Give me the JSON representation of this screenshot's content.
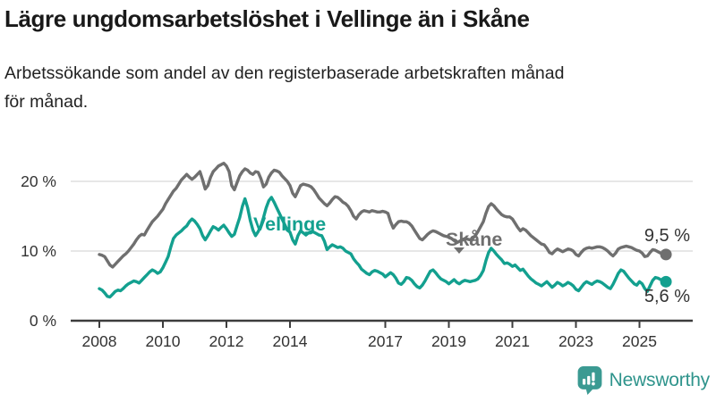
{
  "header": {
    "title": "Lägre ungdomsarbetslöshet i Vellinge än i Skåne",
    "subtitle": "Arbetssökande som andel av den registerbaserade arbetskraften månad\nför månad."
  },
  "chart_data": {
    "type": "line",
    "title": "Lägre ungdomsarbetslöshet i Vellinge än i Skåne",
    "frequency": "monthly",
    "x_start": "2008-01",
    "x_end": "2025-11",
    "ylim": [
      0,
      23.5
    ],
    "grid": "horizontal",
    "y_ticks": [
      {
        "label": "0 %",
        "value": 0
      },
      {
        "label": "10 %",
        "value": 10
      },
      {
        "label": "20 %",
        "value": 20
      }
    ],
    "x_ticks": [
      {
        "label": "2008",
        "year": 2008
      },
      {
        "label": "2010",
        "year": 2010
      },
      {
        "label": "2012",
        "year": 2012
      },
      {
        "label": "2014",
        "year": 2014
      },
      {
        "label": "2017",
        "year": 2017
      },
      {
        "label": "2019",
        "year": 2019
      },
      {
        "label": "2021",
        "year": 2021
      },
      {
        "label": "2023",
        "year": 2023
      },
      {
        "label": "2025",
        "year": 2025
      }
    ],
    "series": [
      {
        "name": "Skåne",
        "color": "#6F6F6F",
        "end_label": "9,5 %",
        "end_value": 9.5,
        "values": [
          9.5,
          9.4,
          9.2,
          8.6,
          8.0,
          7.7,
          8.1,
          8.5,
          8.9,
          9.3,
          9.6,
          10.0,
          10.5,
          11.0,
          11.6,
          12.1,
          12.4,
          12.3,
          13.0,
          13.6,
          14.2,
          14.6,
          15.0,
          15.5,
          16.0,
          16.8,
          17.4,
          18.0,
          18.6,
          19.0,
          19.6,
          20.2,
          20.6,
          21.0,
          20.6,
          20.3,
          20.6,
          21.0,
          21.4,
          20.2,
          18.9,
          19.4,
          20.6,
          21.4,
          21.8,
          22.2,
          22.4,
          22.6,
          22.2,
          21.4,
          19.4,
          18.8,
          19.8,
          20.8,
          21.4,
          21.8,
          21.6,
          21.2,
          21.0,
          21.4,
          21.3,
          20.4,
          19.2,
          19.6,
          20.6,
          21.2,
          21.6,
          21.5,
          21.3,
          20.8,
          20.4,
          20.0,
          19.4,
          18.3,
          17.8,
          18.6,
          19.4,
          19.6,
          19.5,
          19.4,
          19.2,
          18.8,
          18.2,
          17.6,
          17.2,
          16.8,
          16.5,
          16.9,
          17.4,
          17.8,
          17.7,
          17.4,
          17.0,
          16.8,
          16.4,
          15.8,
          15.0,
          14.6,
          15.2,
          15.6,
          15.8,
          15.7,
          15.6,
          15.8,
          15.7,
          15.6,
          15.6,
          15.7,
          15.6,
          15.4,
          14.2,
          13.3,
          13.8,
          14.2,
          14.3,
          14.2,
          14.2,
          14.0,
          13.6,
          13.0,
          12.4,
          11.8,
          11.6,
          12.0,
          12.4,
          12.7,
          12.9,
          12.8,
          12.6,
          12.4,
          12.2,
          12.1,
          12.0,
          11.8,
          11.5,
          11.2,
          11.4,
          11.6,
          11.8,
          11.7,
          11.6,
          11.8,
          12.2,
          12.8,
          13.5,
          14.2,
          15.4,
          16.4,
          16.8,
          16.5,
          16.0,
          15.6,
          15.2,
          15.0,
          14.9,
          14.9,
          14.6,
          14.0,
          13.4,
          12.9,
          13.2,
          13.0,
          12.6,
          12.2,
          11.9,
          11.6,
          11.3,
          11.0,
          10.9,
          10.4,
          9.8,
          9.6,
          10.0,
          10.3,
          10.1,
          9.9,
          10.1,
          10.3,
          10.2,
          10.0,
          9.5,
          9.3,
          9.8,
          10.2,
          10.4,
          10.5,
          10.4,
          10.5,
          10.6,
          10.6,
          10.5,
          10.3,
          10.0,
          9.6,
          9.3,
          9.7,
          10.3,
          10.5,
          10.6,
          10.7,
          10.6,
          10.5,
          10.3,
          10.1,
          10.0,
          9.7,
          9.2,
          9.3,
          9.8,
          10.2,
          10.1,
          9.9,
          9.7,
          9.6,
          9.5
        ]
      },
      {
        "name": "Vellinge",
        "color": "#13A08F",
        "end_label": "5,6 %",
        "end_value": 5.6,
        "values": [
          4.6,
          4.4,
          4.0,
          3.5,
          3.4,
          3.8,
          4.2,
          4.4,
          4.3,
          4.6,
          5.0,
          5.3,
          5.5,
          5.7,
          5.6,
          5.4,
          5.8,
          6.2,
          6.6,
          7.0,
          7.3,
          7.1,
          6.8,
          7.0,
          7.6,
          8.4,
          9.2,
          10.6,
          11.8,
          12.3,
          12.6,
          12.9,
          13.3,
          13.6,
          14.2,
          14.6,
          14.3,
          13.8,
          13.2,
          12.2,
          11.6,
          12.2,
          12.9,
          13.5,
          13.3,
          13.0,
          13.4,
          13.7,
          13.2,
          12.6,
          12.1,
          12.4,
          13.6,
          14.8,
          16.4,
          17.5,
          16.2,
          14.4,
          13.0,
          12.2,
          12.8,
          13.6,
          14.8,
          16.2,
          17.2,
          17.7,
          17.0,
          16.2,
          15.4,
          14.6,
          13.8,
          13.0,
          12.7,
          11.6,
          11.0,
          12.2,
          12.9,
          12.6,
          12.3,
          12.6,
          12.8,
          12.7,
          12.5,
          12.3,
          12.2,
          11.4,
          10.2,
          10.6,
          10.9,
          10.7,
          10.5,
          10.6,
          10.4,
          10.0,
          9.8,
          9.6,
          8.9,
          8.4,
          8.0,
          7.4,
          7.1,
          6.8,
          6.6,
          7.0,
          7.2,
          7.1,
          6.9,
          6.7,
          6.3,
          6.6,
          6.9,
          6.6,
          6.1,
          5.4,
          5.2,
          5.6,
          6.2,
          6.1,
          5.8,
          5.3,
          4.9,
          4.7,
          5.1,
          5.7,
          6.4,
          7.1,
          7.3,
          6.9,
          6.4,
          6.0,
          5.8,
          5.6,
          5.3,
          5.6,
          5.9,
          5.5,
          5.3,
          5.6,
          5.8,
          5.7,
          5.6,
          5.7,
          5.8,
          6.0,
          6.5,
          7.2,
          8.6,
          9.8,
          10.4,
          10.0,
          9.5,
          9.1,
          8.7,
          8.2,
          8.3,
          8.1,
          7.8,
          8.0,
          7.6,
          7.2,
          7.4,
          6.9,
          6.4,
          6.0,
          5.7,
          5.4,
          5.2,
          5.0,
          5.3,
          5.6,
          5.2,
          4.8,
          5.1,
          5.5,
          5.3,
          5.0,
          5.2,
          5.5,
          5.3,
          5.0,
          4.5,
          4.3,
          4.8,
          5.3,
          5.6,
          5.4,
          5.2,
          5.5,
          5.7,
          5.6,
          5.4,
          5.1,
          4.8,
          4.6,
          5.2,
          6.0,
          6.8,
          7.3,
          7.1,
          6.6,
          6.1,
          5.7,
          5.3,
          5.1,
          5.6,
          5.3,
          4.6,
          4.2,
          5.0,
          5.8,
          6.2,
          6.1,
          5.9,
          5.7,
          5.6
        ]
      }
    ],
    "colors": {
      "axis": "#3d3d3d",
      "gridline": "#dfdfdf",
      "tick_label": "#333333",
      "end_label": "#333333"
    }
  },
  "footer": {
    "brand": "Newsworthy",
    "logo_color": "#3b9a92"
  }
}
